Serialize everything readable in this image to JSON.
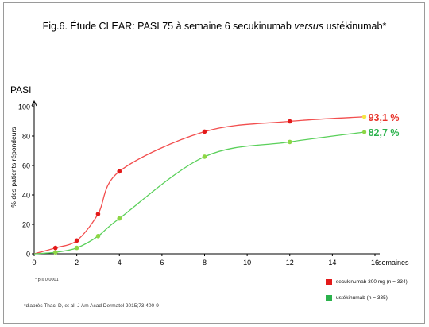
{
  "slide": {
    "title_main": "Fig.6. Étude CLEAR: PASI 75 à semaine 6 secukinumab ",
    "title_italic": "versus",
    "title_end": " ustékinumab*",
    "pasi_label": "PASI",
    "footnote": "* p ≤ 0,0001",
    "source": "*d'après Thaci D, et al.  J Am Acad Dermatol  2015;73:400-9"
  },
  "chart_data": {
    "type": "line",
    "ylabel": "% des patients répondeurs",
    "x_unit_label": "semaines",
    "xlim": [
      0,
      16
    ],
    "ylim": [
      0,
      100
    ],
    "x_ticks": [
      0,
      2,
      4,
      6,
      8,
      10,
      12,
      14,
      16
    ],
    "y_ticks": [
      0,
      20,
      40,
      60,
      80,
      100
    ],
    "grid": false,
    "legend_position": "bottom-right",
    "series": [
      {
        "name": "secukinumab 300 mg (n = 334)",
        "color": "#f24e4e",
        "marker_color": "#e31a1a",
        "end_label": "93,1 %",
        "label_color": "#e8332a",
        "end_marker_color": "#f5e642",
        "x": [
          1,
          2,
          3,
          4,
          8,
          12,
          15.5
        ],
        "y": [
          4,
          9,
          27,
          56,
          83,
          90,
          93.1
        ]
      },
      {
        "name": "ustékinumab (n = 335)",
        "color": "#5ad05a",
        "marker_color": "#8dd645",
        "end_label": "82,7 %",
        "label_color": "#2bb24c",
        "end_marker_color": "#8dd645",
        "x": [
          1,
          2,
          3,
          4,
          8,
          12,
          15.5
        ],
        "y": [
          1,
          4,
          12,
          24,
          66,
          76,
          82.7
        ]
      }
    ]
  }
}
